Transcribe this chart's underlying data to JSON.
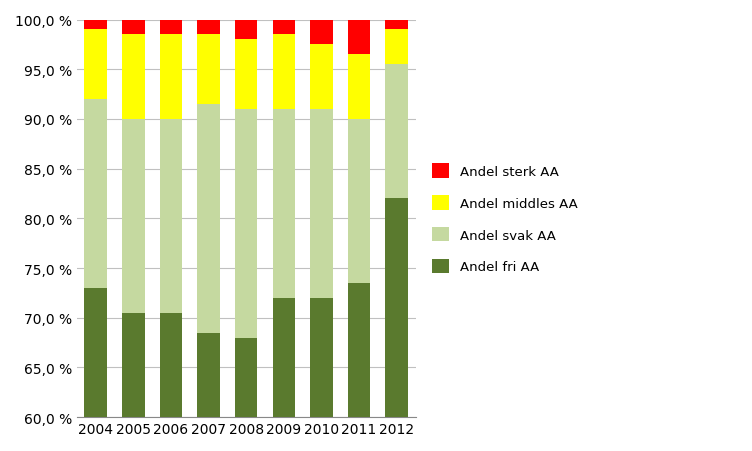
{
  "years": [
    2004,
    2005,
    2006,
    2007,
    2008,
    2009,
    2010,
    2011,
    2012
  ],
  "andel_fri_AA": [
    73.0,
    70.5,
    70.5,
    68.5,
    68.0,
    72.0,
    72.0,
    73.5,
    82.0
  ],
  "andel_svak_AA": [
    19.0,
    19.5,
    19.5,
    23.0,
    23.0,
    19.0,
    19.0,
    16.5,
    13.5
  ],
  "andel_middles_AA": [
    7.0,
    8.5,
    8.5,
    7.0,
    7.0,
    7.5,
    6.5,
    6.5,
    3.5
  ],
  "andel_sterk_AA": [
    1.0,
    1.5,
    1.5,
    1.5,
    2.0,
    1.5,
    2.5,
    3.5,
    1.0
  ],
  "colors": {
    "andel_fri_AA": "#5a7a2e",
    "andel_svak_AA": "#c5d9a0",
    "andel_middles_AA": "#ffff00",
    "andel_sterk_AA": "#ff0000"
  },
  "ylim": [
    60.0,
    100.0
  ],
  "yticks": [
    60.0,
    65.0,
    70.0,
    75.0,
    80.0,
    85.0,
    90.0,
    95.0,
    100.0
  ],
  "background_color": "#ffffff",
  "grid_color": "#c0c0c0",
  "bar_width": 0.6
}
